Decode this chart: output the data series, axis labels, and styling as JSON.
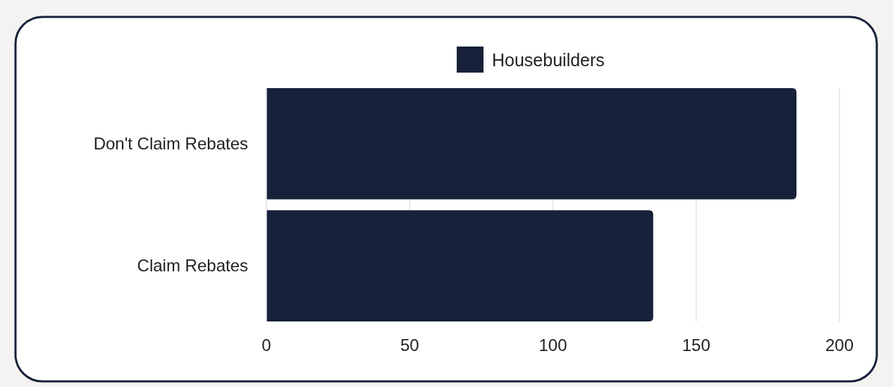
{
  "chart_data": {
    "type": "bar",
    "orientation": "horizontal",
    "categories": [
      "Don't Claim Rebates",
      "Claim Rebates"
    ],
    "series": [
      {
        "name": "Housebuilders",
        "color": "#18213a",
        "values": [
          185,
          135
        ]
      }
    ],
    "xlim": [
      0,
      200
    ],
    "xticks": [
      0,
      50,
      100,
      150,
      200
    ],
    "grid": "x",
    "legend": "top"
  }
}
